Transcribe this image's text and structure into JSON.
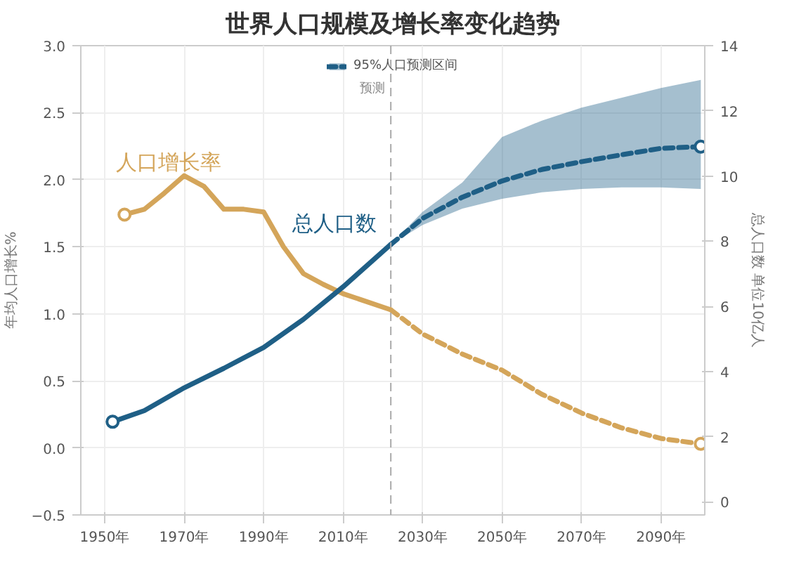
{
  "chart_data": {
    "type": "line",
    "title": "世界人口规模及增长率变化趋势",
    "ylabel": "年均人口增长%",
    "y2label": "总人口数 单位10亿人",
    "xlim": [
      1944,
      2101
    ],
    "xticks": [
      {
        "value": 1950,
        "label": "1950年"
      },
      {
        "value": 1970,
        "label": "1970年"
      },
      {
        "value": 1990,
        "label": "1990年"
      },
      {
        "value": 2010,
        "label": "2010年"
      },
      {
        "value": 2030,
        "label": "2030年"
      },
      {
        "value": 2050,
        "label": "2050年"
      },
      {
        "value": 2070,
        "label": "2070年"
      },
      {
        "value": 2090,
        "label": "2090年"
      }
    ],
    "ylim": [
      -0.5,
      3.0
    ],
    "yticks": [
      -0.5,
      {
        "value": 0,
        "label": "0.0"
      },
      0.5,
      {
        "value": 1,
        "label": "1.0"
      },
      1.5,
      {
        "value": 2,
        "label": "2.0"
      },
      2.5,
      {
        "value": 3,
        "label": "3.0"
      }
    ],
    "y2lim": [
      -0.4,
      14
    ],
    "y2ticks": [
      0,
      2,
      4,
      6,
      8,
      10,
      12,
      14
    ],
    "grid": true,
    "legend": "top",
    "marker": "none",
    "ref_lines": [
      {
        "axis": "x",
        "value": 2022,
        "label": "预测",
        "color": "#aaaaaa",
        "line_style": "dashed"
      }
    ],
    "series": [
      {
        "name": "人口增长率",
        "color": "#d4a55a",
        "line_style": "solid",
        "axis": "y",
        "x": [
          1955,
          1960,
          1965,
          1970,
          1975,
          1980,
          1985,
          1990,
          1995,
          2000,
          2005,
          2010,
          2015,
          2022
        ],
        "values": [
          1.74,
          1.78,
          1.9,
          2.03,
          1.95,
          1.78,
          1.78,
          1.76,
          1.5,
          1.3,
          1.22,
          1.15,
          1.1,
          1.03
        ]
      },
      {
        "color": "#d4a55a",
        "line_style": "dashed",
        "axis": "y",
        "x": [
          2022,
          2030,
          2040,
          2050,
          2060,
          2070,
          2080,
          2090,
          2100
        ],
        "values": [
          1.03,
          0.85,
          0.7,
          0.58,
          0.4,
          0.26,
          0.15,
          0.07,
          0.03
        ]
      },
      {
        "type": "scatter",
        "color": "#d4a55a",
        "marker": "circle",
        "axis": "y",
        "x": [
          1955,
          2100
        ],
        "values": [
          1.74,
          0.03
        ]
      },
      {
        "name": "总人口数",
        "color": "#1f5f86",
        "line_style": "solid",
        "axis": "y2",
        "x": [
          1952,
          1960,
          1970,
          1980,
          1990,
          2000,
          2010,
          2022
        ],
        "values": [
          2.46,
          2.8,
          3.5,
          4.1,
          4.74,
          5.6,
          6.6,
          7.9
        ]
      },
      {
        "name": "95%人口预测区间",
        "color": "#1f5f86",
        "line_style": "dashed",
        "axis": "y2",
        "x": [
          2022,
          2030,
          2040,
          2050,
          2060,
          2070,
          2080,
          2090,
          2100
        ],
        "values": [
          7.9,
          8.7,
          9.35,
          9.85,
          10.2,
          10.44,
          10.65,
          10.85,
          10.9
        ],
        "lower": [
          7.9,
          8.5,
          9.0,
          9.3,
          9.5,
          9.6,
          9.65,
          9.65,
          9.6
        ],
        "upper": [
          7.9,
          8.9,
          9.8,
          11.2,
          11.7,
          12.1,
          12.4,
          12.7,
          12.95
        ]
      },
      {
        "type": "scatter",
        "color": "#1f5f86",
        "marker": "circle",
        "axis": "y2",
        "x": [
          1952,
          2100
        ],
        "values": [
          2.46,
          10.9
        ]
      }
    ]
  }
}
